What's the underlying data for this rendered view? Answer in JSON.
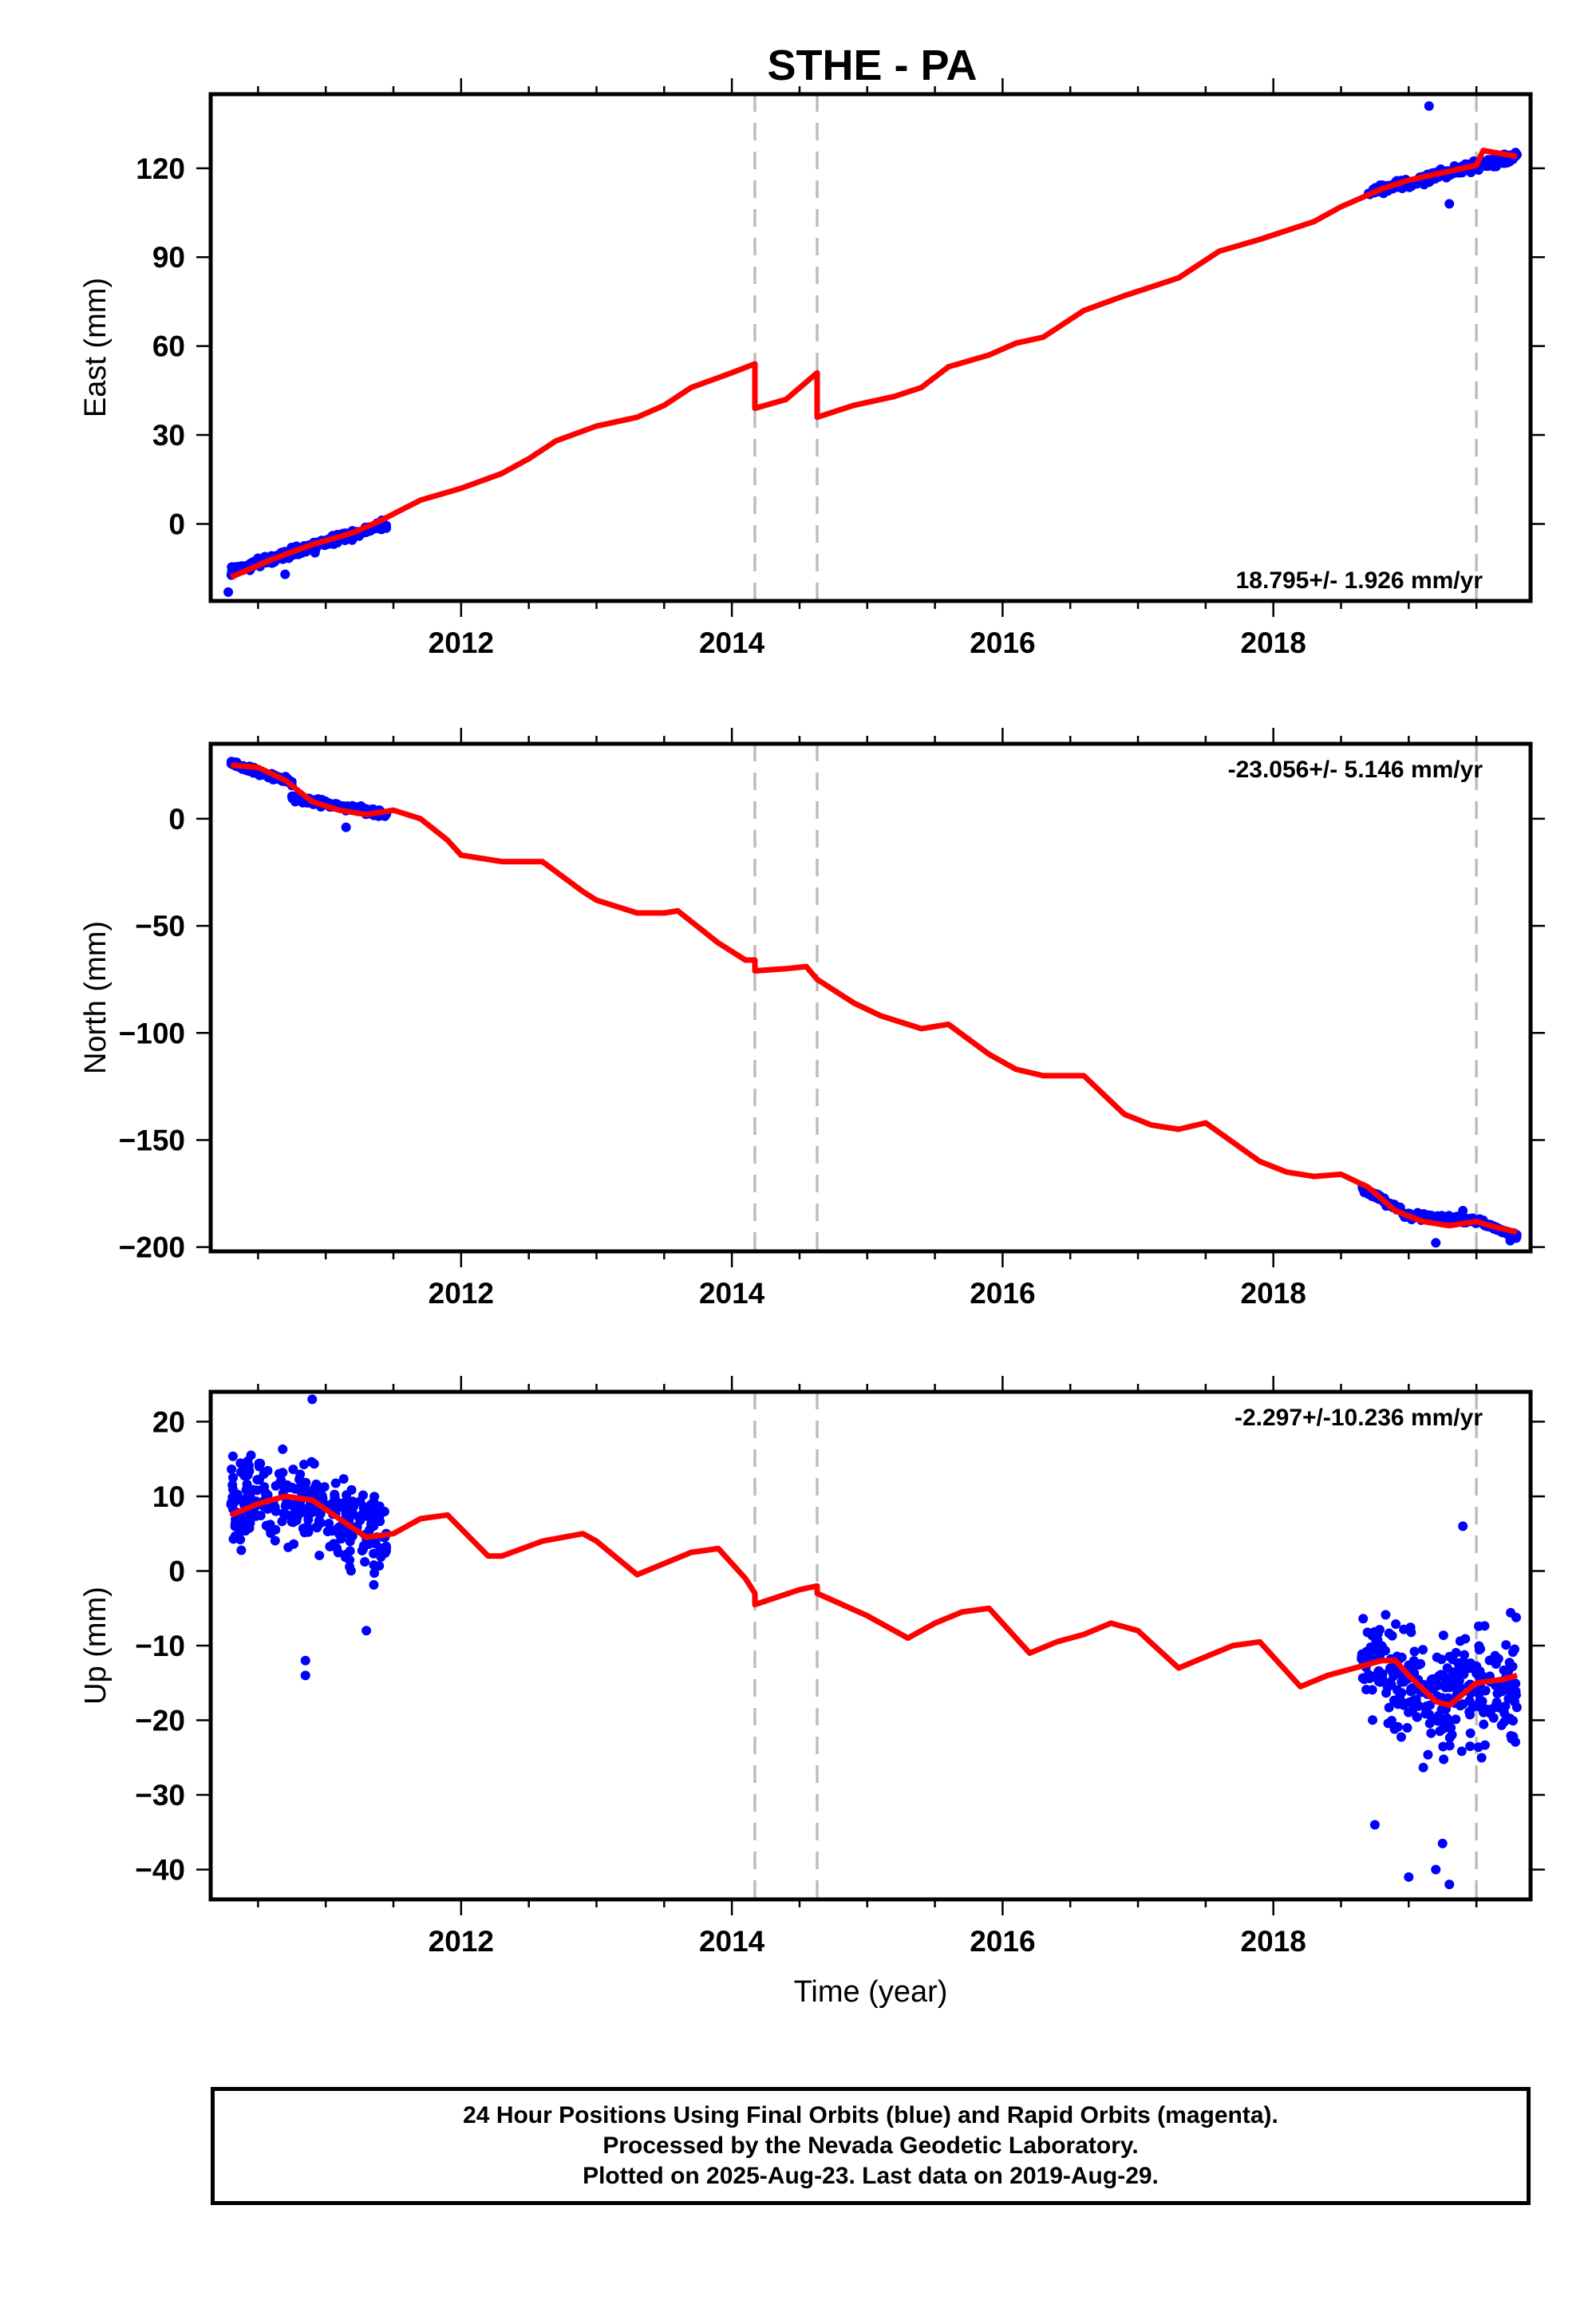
{
  "title": "STHE - PA",
  "footer": {
    "line1": "24 Hour Positions Using Final Orbits (blue) and Rapid Orbits (magenta).",
    "line2": "Processed by the Nevada Geodetic Laboratory.",
    "line3": "Plotted on 2025-Aug-23. Last data on 2019-Aug-29."
  },
  "colors": {
    "data": "#0000ff",
    "model": "#ff0000",
    "offset_lines": "#bdbdbd"
  },
  "chart_data": [
    {
      "type": "scatter",
      "component": "east",
      "ylabel": "East (mm)",
      "xlabel": "",
      "xlim": [
        2010.15,
        2019.9
      ],
      "ylim": [
        -26,
        145
      ],
      "xticks": [
        2012,
        2014,
        2016,
        2018
      ],
      "yticks": [
        0,
        30,
        60,
        90,
        120
      ],
      "rate_label": "18.795+/- 1.926 mm/yr",
      "rate_position": "bottom-right",
      "offset_epochs": [
        2014.17,
        2014.63,
        2019.5
      ],
      "model": {
        "name": "",
        "points": [
          [
            2010.3,
            -18
          ],
          [
            2010.6,
            -12
          ],
          [
            2010.9,
            -7
          ],
          [
            2011.2,
            -3
          ],
          [
            2011.4,
            1
          ],
          [
            2011.7,
            8
          ],
          [
            2012.0,
            12
          ],
          [
            2012.3,
            17
          ],
          [
            2012.5,
            22
          ],
          [
            2012.7,
            28
          ],
          [
            2013.0,
            33
          ],
          [
            2013.3,
            36
          ],
          [
            2013.5,
            40
          ],
          [
            2013.7,
            46
          ],
          [
            2014.0,
            51
          ],
          [
            2014.17,
            54
          ],
          [
            2014.17,
            39
          ],
          [
            2014.4,
            42
          ],
          [
            2014.63,
            51
          ],
          [
            2014.63,
            36
          ],
          [
            2014.9,
            40
          ],
          [
            2015.2,
            43
          ],
          [
            2015.4,
            46
          ],
          [
            2015.6,
            53
          ],
          [
            2015.9,
            57
          ],
          [
            2016.1,
            61
          ],
          [
            2016.3,
            63
          ],
          [
            2016.6,
            72
          ],
          [
            2016.9,
            77
          ],
          [
            2017.1,
            80
          ],
          [
            2017.3,
            83
          ],
          [
            2017.6,
            92
          ],
          [
            2017.9,
            96
          ],
          [
            2018.1,
            99
          ],
          [
            2018.3,
            102
          ],
          [
            2018.5,
            107
          ],
          [
            2018.8,
            113
          ],
          [
            2019.0,
            116
          ],
          [
            2019.3,
            119
          ],
          [
            2019.5,
            121
          ],
          [
            2019.55,
            126
          ],
          [
            2019.8,
            124
          ]
        ]
      },
      "series": [
        {
          "name": "",
          "segments": [
            {
              "x0": 2010.3,
              "x1": 2011.45,
              "y0": -16,
              "y1": 0,
              "spread": 3
            },
            {
              "x0": 2018.7,
              "x1": 2019.8,
              "y0": 112,
              "y1": 124,
              "spread": 3
            }
          ],
          "outliers": [
            [
              2010.28,
              -23
            ],
            [
              2010.7,
              -17
            ],
            [
              2011.05,
              -4
            ],
            [
              2019.15,
              141
            ],
            [
              2019.3,
              108
            ],
            [
              2018.8,
              112
            ]
          ]
        }
      ]
    },
    {
      "type": "scatter",
      "component": "north",
      "ylabel": "North (mm)",
      "xlabel": "",
      "xlim": [
        2010.15,
        2019.9
      ],
      "ylim": [
        -202,
        35
      ],
      "xticks": [
        2012,
        2014,
        2016,
        2018
      ],
      "yticks": [
        0,
        -50,
        -100,
        -150,
        -200
      ],
      "rate_label": "-23.056+/- 5.146 mm/yr",
      "rate_position": "top-right",
      "offset_epochs": [
        2014.17,
        2014.63,
        2019.5
      ],
      "model": {
        "name": "",
        "points": [
          [
            2010.3,
            25
          ],
          [
            2010.5,
            24
          ],
          [
            2010.7,
            18
          ],
          [
            2010.9,
            8
          ],
          [
            2011.1,
            4
          ],
          [
            2011.3,
            2
          ],
          [
            2011.5,
            4
          ],
          [
            2011.7,
            0
          ],
          [
            2011.9,
            -10
          ],
          [
            2012.0,
            -17
          ],
          [
            2012.3,
            -20
          ],
          [
            2012.5,
            -20
          ],
          [
            2012.6,
            -20
          ],
          [
            2012.9,
            -34
          ],
          [
            2013.0,
            -38
          ],
          [
            2013.3,
            -44
          ],
          [
            2013.5,
            -44
          ],
          [
            2013.6,
            -43
          ],
          [
            2013.9,
            -58
          ],
          [
            2014.1,
            -66
          ],
          [
            2014.17,
            -66
          ],
          [
            2014.17,
            -71
          ],
          [
            2014.4,
            -70
          ],
          [
            2014.55,
            -69
          ],
          [
            2014.63,
            -75
          ],
          [
            2014.9,
            -86
          ],
          [
            2015.1,
            -92
          ],
          [
            2015.4,
            -98
          ],
          [
            2015.6,
            -96
          ],
          [
            2015.9,
            -110
          ],
          [
            2016.1,
            -117
          ],
          [
            2016.3,
            -120
          ],
          [
            2016.4,
            -120
          ],
          [
            2016.6,
            -120
          ],
          [
            2016.9,
            -138
          ],
          [
            2017.1,
            -143
          ],
          [
            2017.3,
            -145
          ],
          [
            2017.5,
            -142
          ],
          [
            2017.9,
            -160
          ],
          [
            2018.1,
            -165
          ],
          [
            2018.3,
            -167
          ],
          [
            2018.5,
            -166
          ],
          [
            2018.7,
            -172
          ],
          [
            2018.9,
            -183
          ],
          [
            2019.1,
            -188
          ],
          [
            2019.3,
            -190
          ],
          [
            2019.5,
            -188
          ],
          [
            2019.6,
            -190
          ],
          [
            2019.8,
            -193
          ]
        ]
      },
      "series": [
        {
          "name": "",
          "segments": [
            {
              "x0": 2010.3,
              "x1": 2010.75,
              "y0": 26,
              "y1": 17,
              "spread": 2.5
            },
            {
              "x0": 2010.75,
              "x1": 2011.45,
              "y0": 10,
              "y1": 2,
              "spread": 3
            },
            {
              "x0": 2018.65,
              "x1": 2018.95,
              "y0": -172,
              "y1": -183,
              "spread": 2.5
            },
            {
              "x0": 2018.95,
              "x1": 2019.55,
              "y0": -185,
              "y1": -188,
              "spread": 2.5
            },
            {
              "x0": 2019.55,
              "x1": 2019.8,
              "y0": -189,
              "y1": -195,
              "spread": 2
            }
          ],
          "outliers": [
            [
              2011.15,
              -4
            ],
            [
              2019.2,
              -198
            ],
            [
              2019.4,
              -183
            ],
            [
              2019.75,
              -197
            ]
          ]
        }
      ]
    },
    {
      "type": "scatter",
      "component": "up",
      "ylabel": "Up (mm)",
      "xlabel": "Time (year)",
      "xlim": [
        2010.15,
        2019.9
      ],
      "ylim": [
        -44,
        24
      ],
      "xticks": [
        2012,
        2014,
        2016,
        2018
      ],
      "yticks": [
        20,
        10,
        0,
        -10,
        -20,
        -30,
        -40
      ],
      "rate_label": "-2.297+/-10.236 mm/yr",
      "rate_position": "top-right",
      "offset_epochs": [
        2014.17,
        2014.63,
        2019.5
      ],
      "model": {
        "name": "",
        "points": [
          [
            2010.3,
            7.5
          ],
          [
            2010.5,
            9
          ],
          [
            2010.7,
            10
          ],
          [
            2010.9,
            9.5
          ],
          [
            2011.1,
            7
          ],
          [
            2011.3,
            4.5
          ],
          [
            2011.5,
            5
          ],
          [
            2011.7,
            7
          ],
          [
            2011.9,
            7.5
          ],
          [
            2012.2,
            2
          ],
          [
            2012.3,
            2
          ],
          [
            2012.6,
            4
          ],
          [
            2012.9,
            5
          ],
          [
            2013.0,
            4
          ],
          [
            2013.3,
            -0.5
          ],
          [
            2013.5,
            1
          ],
          [
            2013.7,
            2.5
          ],
          [
            2013.9,
            3
          ],
          [
            2014.1,
            -1
          ],
          [
            2014.17,
            -3
          ],
          [
            2014.17,
            -4.5
          ],
          [
            2014.5,
            -2.5
          ],
          [
            2014.63,
            -2
          ],
          [
            2014.63,
            -3
          ],
          [
            2015.0,
            -6
          ],
          [
            2015.3,
            -9
          ],
          [
            2015.5,
            -7
          ],
          [
            2015.7,
            -5.5
          ],
          [
            2015.9,
            -5
          ],
          [
            2016.2,
            -11
          ],
          [
            2016.4,
            -9.5
          ],
          [
            2016.6,
            -8.5
          ],
          [
            2016.8,
            -7
          ],
          [
            2017.0,
            -8
          ],
          [
            2017.3,
            -13
          ],
          [
            2017.5,
            -11.5
          ],
          [
            2017.7,
            -10
          ],
          [
            2017.9,
            -9.5
          ],
          [
            2018.2,
            -15.5
          ],
          [
            2018.4,
            -14
          ],
          [
            2018.6,
            -13
          ],
          [
            2018.8,
            -12
          ],
          [
            2018.9,
            -12
          ],
          [
            2019.0,
            -14
          ],
          [
            2019.2,
            -17.5
          ],
          [
            2019.3,
            -18
          ],
          [
            2019.5,
            -15
          ],
          [
            2019.7,
            -14.5
          ],
          [
            2019.8,
            -14
          ]
        ]
      },
      "series": [
        {
          "name": "",
          "segments": [
            {
              "x0": 2010.3,
              "x1": 2010.95,
              "y0": 9,
              "y1": 10,
              "spread": 11
            },
            {
              "x0": 2010.95,
              "x1": 2011.45,
              "y0": 8,
              "y1": 5,
              "spread": 11
            },
            {
              "x0": 2018.65,
              "x1": 2019.1,
              "y0": -12,
              "y1": -15,
              "spread": 13
            },
            {
              "x0": 2019.1,
              "x1": 2019.8,
              "y0": -17,
              "y1": -15,
              "spread": 14
            }
          ],
          "outliers": [
            [
              2010.9,
              23
            ],
            [
              2010.85,
              -12
            ],
            [
              2010.85,
              -14
            ],
            [
              2011.3,
              -8
            ],
            [
              2019.4,
              6
            ],
            [
              2019.0,
              -41
            ],
            [
              2019.2,
              -40
            ],
            [
              2019.3,
              -42
            ],
            [
              2019.25,
              -36.5
            ],
            [
              2018.75,
              -34
            ]
          ]
        }
      ]
    }
  ]
}
